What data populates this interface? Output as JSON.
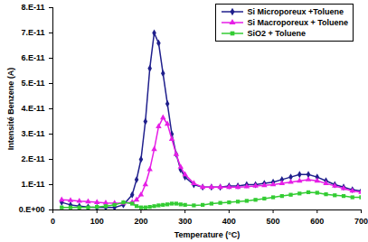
{
  "chart_data": {
    "type": "line",
    "x_label": "Temperature (°C)",
    "y_label": "Intensité Benzene (A)",
    "x": [
      20,
      40,
      60,
      80,
      100,
      120,
      140,
      160,
      180,
      190,
      200,
      210,
      220,
      230,
      240,
      250,
      260,
      270,
      280,
      290,
      300,
      320,
      340,
      360,
      380,
      400,
      420,
      440,
      460,
      480,
      500,
      520,
      540,
      560,
      580,
      600,
      620,
      640,
      660,
      680,
      700
    ],
    "series": [
      {
        "name": "Si Microporeux +Toluene",
        "color": "#1f1f8c",
        "marker": "diamond",
        "values": [
          3e-12,
          2e-12,
          1.5e-12,
          1.2e-12,
          1e-12,
          1e-12,
          1e-12,
          2e-12,
          6e-12,
          1.2e-11,
          2e-11,
          3.5e-11,
          5.6e-11,
          7e-11,
          6.6e-11,
          5.4e-11,
          4.2e-11,
          3e-11,
          2.2e-11,
          1.6e-11,
          1.3e-11,
          1e-11,
          9e-12,
          9e-12,
          9e-12,
          9.5e-12,
          9.5e-12,
          1e-11,
          1e-11,
          1.05e-11,
          1.1e-11,
          1.2e-11,
          1.3e-11,
          1.4e-11,
          1.4e-11,
          1.3e-11,
          1.15e-11,
          1e-11,
          9e-12,
          8e-12,
          7.5e-12
        ]
      },
      {
        "name": "Si Macroporeux + Toluene",
        "color": "#e61ee6",
        "marker": "triangle",
        "values": [
          4e-12,
          3.8e-12,
          3.5e-12,
          3.3e-12,
          3e-12,
          2.8e-12,
          2.7e-12,
          2.7e-12,
          3e-12,
          4e-12,
          6e-12,
          1e-11,
          1.6e-11,
          2.4e-11,
          3.3e-11,
          3.65e-11,
          3.4e-11,
          2.8e-11,
          2.2e-11,
          1.7e-11,
          1.4e-11,
          1.05e-11,
          9e-12,
          9e-12,
          9e-12,
          9e-12,
          9e-12,
          9.2e-12,
          9.5e-12,
          9.7e-12,
          1e-11,
          1.05e-11,
          1.1e-11,
          1.15e-11,
          1.2e-11,
          1.15e-11,
          1.05e-11,
          9.5e-12,
          8.5e-12,
          7.5e-12,
          7e-12
        ]
      },
      {
        "name": "SiO2 + Toluene",
        "color": "#33cc33",
        "marker": "square",
        "values": [
          1e-12,
          1e-12,
          1e-12,
          1e-12,
          1.2e-12,
          1.5e-12,
          2e-12,
          3e-12,
          2.5e-12,
          1.5e-12,
          1e-12,
          1e-12,
          1.2e-12,
          1.5e-12,
          1.8e-12,
          2e-12,
          2.2e-12,
          2.5e-12,
          2.5e-12,
          2.2e-12,
          2e-12,
          1.8e-12,
          2e-12,
          2.5e-12,
          2.8e-12,
          3e-12,
          3.3e-12,
          3.6e-12,
          4e-12,
          4.5e-12,
          5e-12,
          5.5e-12,
          6e-12,
          6.5e-12,
          7e-12,
          6.8e-12,
          6.2e-12,
          5.8e-12,
          5.5e-12,
          5e-12,
          5e-12
        ]
      }
    ],
    "xlim": [
      0,
      700
    ],
    "xticks": [
      0,
      100,
      200,
      300,
      400,
      500,
      600,
      700
    ],
    "ylim": [
      0,
      8e-11
    ],
    "yticks": [
      {
        "value": 0,
        "label": "0.E+00"
      },
      {
        "value": 1e-11,
        "label": "1.E-11"
      },
      {
        "value": 2e-11,
        "label": "2.E-11"
      },
      {
        "value": 3e-11,
        "label": "3.E-11"
      },
      {
        "value": 4e-11,
        "label": "4.E-11"
      },
      {
        "value": 5e-11,
        "label": "5.E-11"
      },
      {
        "value": 6e-11,
        "label": "6.E-11"
      },
      {
        "value": 7e-11,
        "label": "7.E-11"
      },
      {
        "value": 8e-11,
        "label": "8.E-11"
      }
    ],
    "grid": false,
    "legend": "top-right"
  }
}
